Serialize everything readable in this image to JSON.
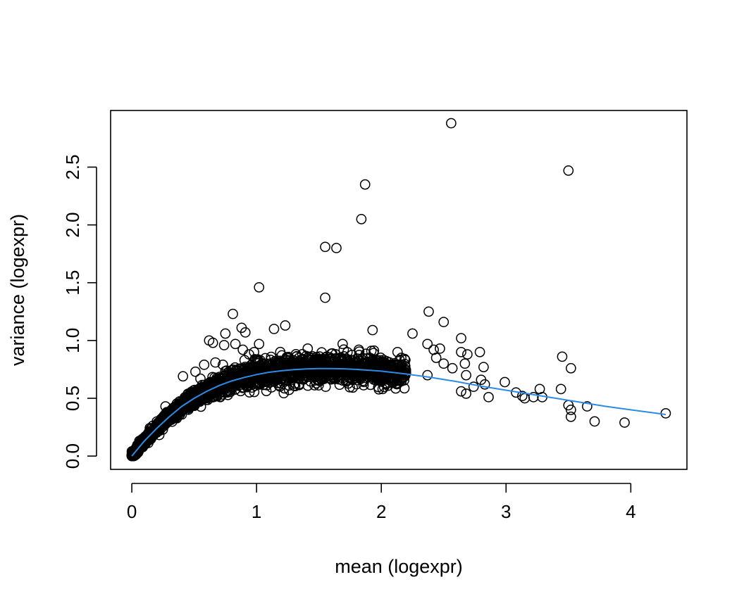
{
  "chart_data": {
    "type": "scatter",
    "title": "",
    "xlabel": "mean (logexpr)",
    "ylabel": "variance (logexpr)",
    "xlim": [
      -0.17,
      4.45
    ],
    "ylim": [
      -0.115,
      2.99
    ],
    "x_ticks": [
      0,
      1,
      2,
      3,
      4
    ],
    "x_tick_labels": [
      "0",
      "1",
      "2",
      "3",
      "4"
    ],
    "y_ticks": [
      0.0,
      0.5,
      1.0,
      1.5,
      2.0,
      2.5
    ],
    "y_tick_labels": [
      "0.0",
      "0.5",
      "1.0",
      "1.5",
      "2.0",
      "2.5"
    ],
    "grid": false,
    "legend": "none",
    "marker": "open-circle",
    "colors": {
      "points": "#000000",
      "trend": "#2b8ce8",
      "frame": "#000000"
    },
    "trend_curve": {
      "name": "",
      "x": [
        0,
        0.1,
        0.2,
        0.3,
        0.4,
        0.5,
        0.6,
        0.7,
        0.8,
        0.9,
        1.0,
        1.1,
        1.2,
        1.3,
        1.4,
        1.5,
        1.6,
        1.7,
        1.8,
        1.9,
        2.0,
        2.2,
        2.4,
        2.6,
        2.8,
        3.0,
        3.2,
        3.4,
        3.6,
        3.8,
        4.0,
        4.28
      ],
      "y": [
        0.0,
        0.13,
        0.24,
        0.34,
        0.43,
        0.5,
        0.56,
        0.61,
        0.65,
        0.68,
        0.705,
        0.725,
        0.738,
        0.748,
        0.754,
        0.757,
        0.757,
        0.755,
        0.75,
        0.743,
        0.735,
        0.71,
        0.68,
        0.645,
        0.605,
        0.57,
        0.535,
        0.5,
        0.465,
        0.43,
        0.4,
        0.36
      ]
    },
    "outliers": [
      [
        2.56,
        2.88
      ],
      [
        3.5,
        2.47
      ],
      [
        1.87,
        2.35
      ],
      [
        1.84,
        2.05
      ],
      [
        1.55,
        1.81
      ],
      [
        1.64,
        1.8
      ],
      [
        1.02,
        1.46
      ],
      [
        1.55,
        1.37
      ],
      [
        0.81,
        1.23
      ],
      [
        2.38,
        1.25
      ],
      [
        2.5,
        1.16
      ],
      [
        1.23,
        1.13
      ],
      [
        1.14,
        1.1
      ],
      [
        0.88,
        1.11
      ],
      [
        1.93,
        1.09
      ],
      [
        0.75,
        1.06
      ],
      [
        2.25,
        1.06
      ],
      [
        0.91,
        1.07
      ],
      [
        2.64,
        1.02
      ],
      [
        0.62,
        1.0
      ],
      [
        0.65,
        0.98
      ],
      [
        1.02,
        0.97
      ],
      [
        0.83,
        0.97
      ],
      [
        0.74,
        0.96
      ],
      [
        2.37,
        0.97
      ],
      [
        1.69,
        0.97
      ],
      [
        2.47,
        0.93
      ],
      [
        1.41,
        0.93
      ],
      [
        2.79,
        0.9
      ],
      [
        0.89,
        0.92
      ],
      [
        2.42,
        0.92
      ],
      [
        1.82,
        0.92
      ],
      [
        1.92,
        0.91
      ],
      [
        2.64,
        0.9
      ],
      [
        2.13,
        0.9
      ],
      [
        2.69,
        0.88
      ],
      [
        3.45,
        0.86
      ],
      [
        2.44,
        0.85
      ],
      [
        2.16,
        0.85
      ],
      [
        2.5,
        0.8
      ],
      [
        2.67,
        0.8
      ],
      [
        0.58,
        0.79
      ],
      [
        0.73,
        0.79
      ],
      [
        2.82,
        0.77
      ],
      [
        3.52,
        0.76
      ],
      [
        2.57,
        0.76
      ],
      [
        2.37,
        0.7
      ],
      [
        2.68,
        0.7
      ],
      [
        2.99,
        0.64
      ],
      [
        2.8,
        0.66
      ],
      [
        2.83,
        0.62
      ],
      [
        2.74,
        0.6
      ],
      [
        3.44,
        0.58
      ],
      [
        3.27,
        0.58
      ],
      [
        2.64,
        0.56
      ],
      [
        2.68,
        0.54
      ],
      [
        3.08,
        0.55
      ],
      [
        3.13,
        0.52
      ],
      [
        3.15,
        0.5
      ],
      [
        3.22,
        0.51
      ],
      [
        3.29,
        0.51
      ],
      [
        2.86,
        0.51
      ],
      [
        3.5,
        0.44
      ],
      [
        3.65,
        0.43
      ],
      [
        3.52,
        0.4
      ],
      [
        3.52,
        0.34
      ],
      [
        3.71,
        0.3
      ],
      [
        3.95,
        0.29
      ],
      [
        4.28,
        0.37
      ],
      [
        0.41,
        0.69
      ],
      [
        0.51,
        0.73
      ],
      [
        0.55,
        0.67
      ],
      [
        0.27,
        0.43
      ],
      [
        0.67,
        0.81
      ],
      [
        0.94,
        0.88
      ],
      [
        0.98,
        0.9
      ]
    ],
    "bulk_band": {
      "x_from": 0.0,
      "x_to": 2.2,
      "count": 2600,
      "spread": 0.06
    }
  }
}
